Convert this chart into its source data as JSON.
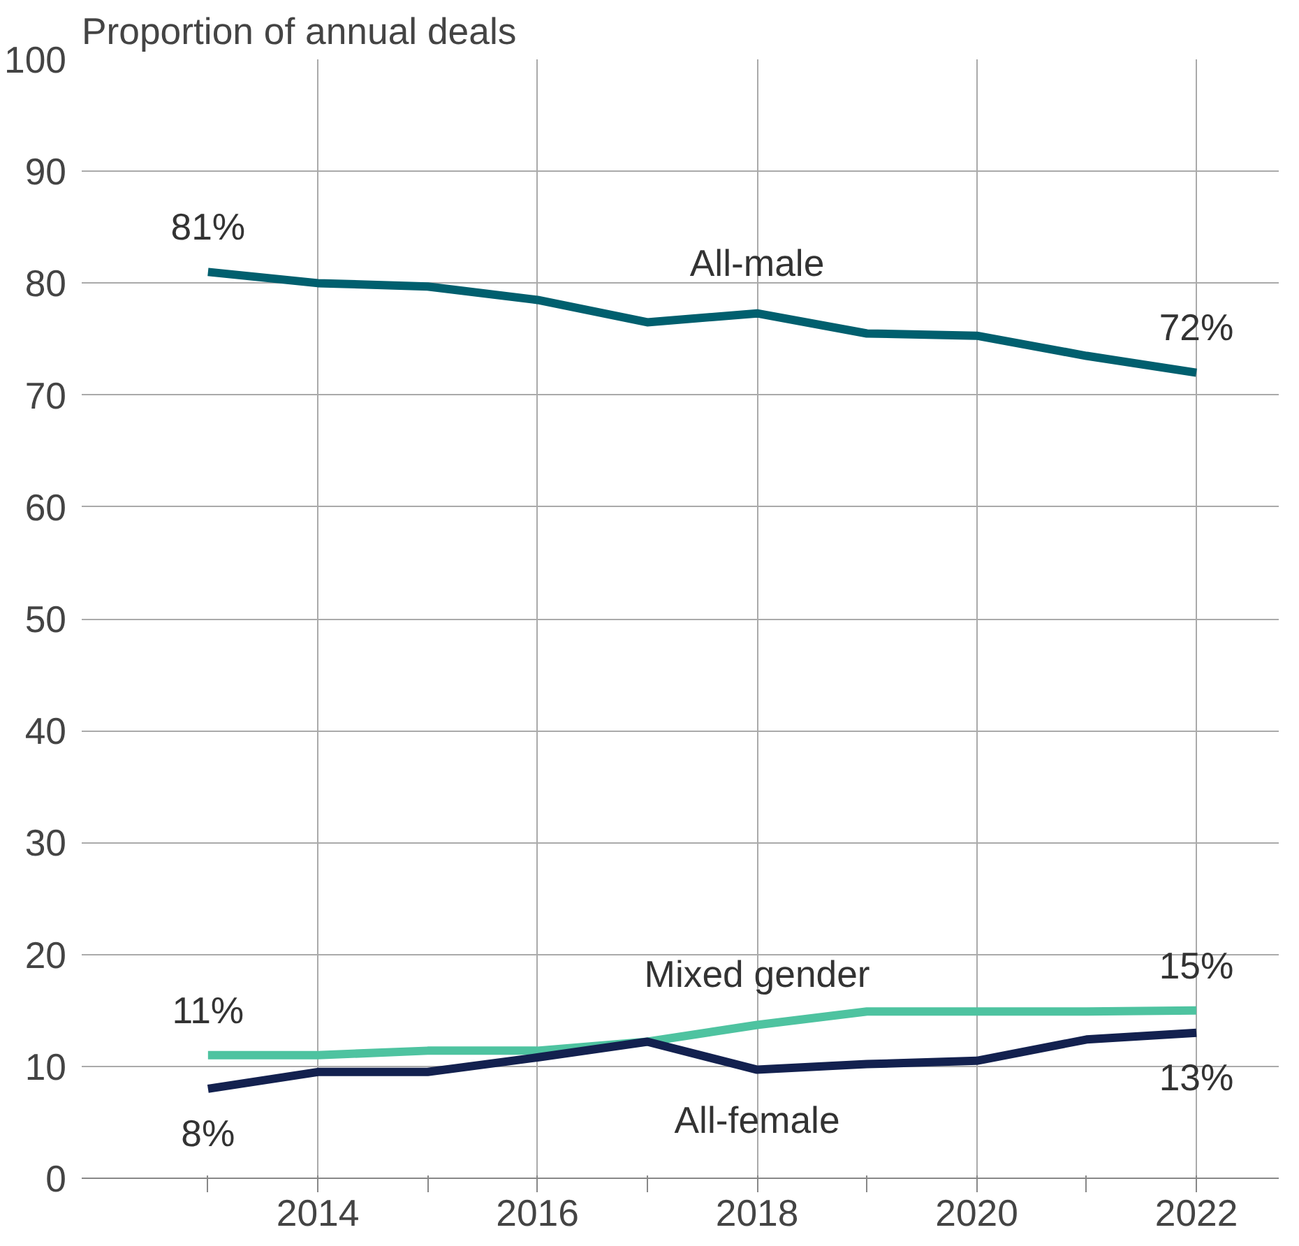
{
  "chart_data": {
    "type": "line",
    "ylabel": "Proportion of annual deals",
    "x": [
      2013,
      2014,
      2015,
      2016,
      2017,
      2018,
      2019,
      2020,
      2021,
      2022
    ],
    "series": [
      {
        "name": "All-male",
        "color": "#005f6e",
        "values": [
          81,
          80,
          79.7,
          78.5,
          76.5,
          77.3,
          75.5,
          75.3,
          73.5,
          72
        ],
        "value_labels": [
          "81%",
          null,
          null,
          null,
          null,
          null,
          null,
          null,
          null,
          "72%"
        ]
      },
      {
        "name": "Mixed gender",
        "color": "#4ec3a0",
        "values": [
          11,
          11,
          11.4,
          11.4,
          12.2,
          13.7,
          14.9,
          14.9,
          14.9,
          15
        ],
        "value_labels": [
          "11%",
          null,
          null,
          null,
          null,
          null,
          null,
          null,
          null,
          "15%"
        ]
      },
      {
        "name": "All-female",
        "color": "#13214f",
        "values": [
          8,
          9.5,
          9.5,
          10.8,
          12.2,
          9.7,
          10.2,
          10.5,
          12.4,
          13
        ],
        "value_labels": [
          "8%",
          null,
          null,
          null,
          null,
          null,
          null,
          null,
          null,
          "13%"
        ]
      }
    ],
    "xlim": [
      2011.85,
      2022.75
    ],
    "ylim": [
      0,
      100
    ],
    "xticks": [
      {
        "value": 2013,
        "label": null
      },
      2014,
      {
        "value": 2015,
        "label": null
      },
      2016,
      {
        "value": 2017,
        "label": null
      },
      2018,
      {
        "value": 2019,
        "label": null
      },
      2020,
      {
        "value": 2021,
        "label": null
      },
      2022
    ],
    "yticks": [
      0,
      10,
      20,
      30,
      40,
      50,
      60,
      70,
      80,
      90,
      100
    ],
    "grid": true,
    "marker": "none",
    "line_style": "solid"
  }
}
